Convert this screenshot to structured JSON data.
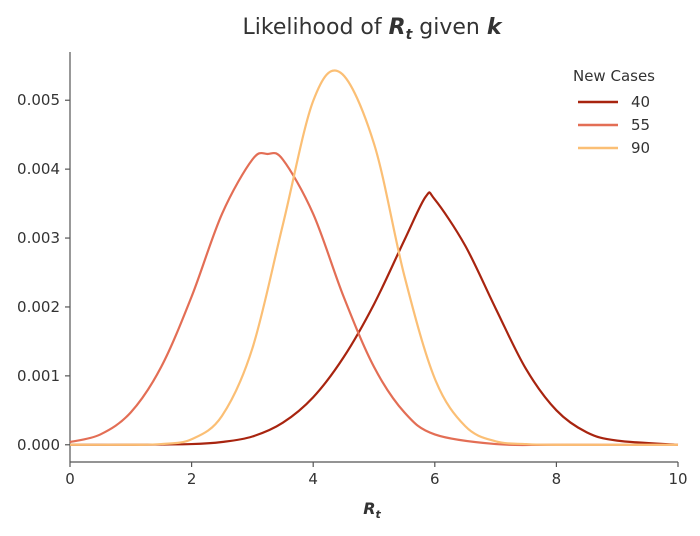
{
  "chart_data": {
    "type": "line",
    "title_prefix": "Likelihood of ",
    "title_r_symbol": "R",
    "title_r_subscript": "t",
    "title_middle": " given ",
    "title_k_symbol": "k",
    "xlabel_symbol": "R",
    "xlabel_subscript": "t",
    "ylabel": "",
    "xlim": [
      0,
      10
    ],
    "ylim": [
      -0.00025,
      0.0057
    ],
    "x_ticks": [
      0,
      2,
      4,
      6,
      8,
      10
    ],
    "x_tick_labels": [
      "0",
      "2",
      "4",
      "6",
      "8",
      "10"
    ],
    "y_ticks": [
      0,
      0.001,
      0.002,
      0.003,
      0.004,
      0.005
    ],
    "y_tick_labels": [
      "0.000",
      "0.001",
      "0.002",
      "0.003",
      "0.004",
      "0.005"
    ],
    "grid": false,
    "legend_title": "New Cases",
    "legend_position": "top-right",
    "series": [
      {
        "name": "40",
        "color": "#a8240f",
        "x": [
          0,
          1,
          2,
          2.5,
          3,
          3.5,
          4,
          4.5,
          5,
          5.5,
          5.85,
          6,
          6.5,
          7,
          7.5,
          8,
          8.5,
          9,
          10
        ],
        "y": [
          0.0,
          0.0,
          1e-05,
          4e-05,
          0.00012,
          0.00032,
          0.00069,
          0.00127,
          0.00204,
          0.00297,
          0.0036,
          0.00356,
          0.00289,
          0.00198,
          0.0011,
          0.0005,
          0.00018,
          6e-05,
          0.0
        ]
      },
      {
        "name": "55",
        "color": "#e36e55",
        "x": [
          0,
          0.5,
          1,
          1.5,
          2,
          2.5,
          3,
          3.25,
          3.5,
          4,
          4.5,
          5,
          5.5,
          6,
          7,
          8,
          10
        ],
        "y": [
          4e-05,
          0.00015,
          0.00047,
          0.00113,
          0.00215,
          0.00335,
          0.00414,
          0.00422,
          0.00414,
          0.00335,
          0.00215,
          0.00113,
          0.00047,
          0.00015,
          1e-05,
          0.0,
          0.0
        ]
      },
      {
        "name": "90",
        "color": "#fbbf75",
        "x": [
          0,
          1,
          1.5,
          2,
          2.5,
          3,
          3.5,
          4,
          4.45,
          5,
          5.5,
          6,
          6.5,
          7,
          7.5,
          8,
          10
        ],
        "y": [
          0.0,
          0.0,
          1e-05,
          8e-05,
          0.00042,
          0.0014,
          0.00319,
          0.00499,
          0.0054,
          0.00437,
          0.00245,
          0.00096,
          0.00027,
          5e-05,
          1e-05,
          0.0,
          0.0
        ]
      }
    ]
  }
}
